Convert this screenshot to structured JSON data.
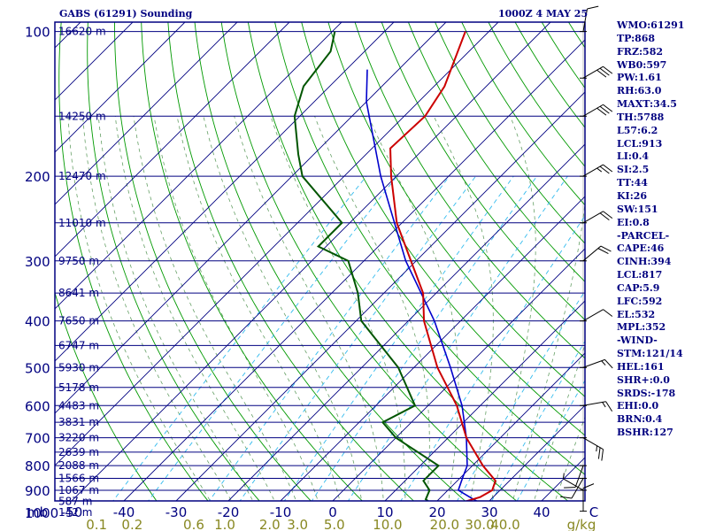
{
  "header": {
    "title": "GABS (61291) Sounding",
    "time": "1000Z  4 MAY 25"
  },
  "indices": [
    "WMO:61291",
    "TP:868",
    "FRZ:582",
    "WB0:597",
    "PW:1.61",
    "RH:63.0",
    "MAXT:34.5",
    "TH:5788",
    "L57:6.2",
    "LCL:913",
    "LI:0.4",
    "SI:2.5",
    "TT:44",
    "KI:26",
    "SW:151",
    "EI:0.8",
    "-PARCEL-",
    "CAPE:46",
    "CINH:394",
    "LCL:817",
    "CAP:5.9",
    "LFC:592",
    "EL:532",
    "MPL:352",
    "-WIND-",
    "STM:121/14",
    "HEL:161",
    "SHR+:0.0",
    "SRDS:-178",
    "EHI:0.0",
    "BRN:0.4",
    "BSHR:127"
  ],
  "colors": {
    "frame": "#000080",
    "isobar": "#000080",
    "isotherm": "#000080",
    "dry_adiabat": "#009900",
    "moist_adiabat": "#66a066",
    "mixing_ratio": "#33bbee",
    "temperature": "#cc0000",
    "dewpoint": "#005500",
    "parcel": "#0000cc",
    "wind_barb": "#000000",
    "tick_label": "#000080",
    "mixing_label": "#888822"
  },
  "chart_data": {
    "type": "skew-t",
    "pressure_axis_unit": "mb",
    "temperature_axis_unit": "C",
    "mixing_ratio_unit": "g/kg",
    "pressure_labels": [
      100,
      200,
      300,
      400,
      500,
      600,
      700,
      800,
      900,
      1000
    ],
    "temperature_labels": [
      -50,
      -40,
      -30,
      -20,
      -10,
      0,
      10,
      20,
      30,
      40
    ],
    "mixing_ratio_labels": [
      "0.1",
      "0.2",
      "0.6",
      "1.0",
      "2.0",
      "3.0",
      "5.0",
      "10.0",
      "20.0",
      "30.0",
      "40.0"
    ],
    "height_labels": [
      {
        "p": 100,
        "label": "16620 m"
      },
      {
        "p": 150,
        "label": "14250 m"
      },
      {
        "p": 200,
        "label": "12470 m"
      },
      {
        "p": 250,
        "label": "11010 m"
      },
      {
        "p": 300,
        "label": "9750 m"
      },
      {
        "p": 350,
        "label": "8641 m"
      },
      {
        "p": 400,
        "label": "7650 m"
      },
      {
        "p": 450,
        "label": "6747 m"
      },
      {
        "p": 500,
        "label": "5930 m"
      },
      {
        "p": 550,
        "label": "5178 m"
      },
      {
        "p": 600,
        "label": "4483 m"
      },
      {
        "p": 650,
        "label": "3831 m"
      },
      {
        "p": 700,
        "label": "3220 m"
      },
      {
        "p": 750,
        "label": "2639 m"
      },
      {
        "p": 800,
        "label": "2088 m"
      },
      {
        "p": 850,
        "label": "1566 m"
      },
      {
        "p": 900,
        "label": "1067 m"
      },
      {
        "p": 950,
        "label": "587 m"
      },
      {
        "p": 1000,
        "label": "142 m"
      }
    ],
    "temperature_profile": [
      {
        "p": 975,
        "t": 25.0
      },
      {
        "p": 960,
        "t": 24.5
      },
      {
        "p": 930,
        "t": 27.5
      },
      {
        "p": 900,
        "t": 28.5
      },
      {
        "p": 860,
        "t": 27.3
      },
      {
        "p": 800,
        "t": 22.0
      },
      {
        "p": 700,
        "t": 13.5
      },
      {
        "p": 600,
        "t": 5.5
      },
      {
        "p": 500,
        "t": -5.5
      },
      {
        "p": 400,
        "t": -17.0
      },
      {
        "p": 350,
        "t": -22.5
      },
      {
        "p": 300,
        "t": -31.0
      },
      {
        "p": 250,
        "t": -41.0
      },
      {
        "p": 200,
        "t": -51.0
      },
      {
        "p": 175,
        "t": -56.5
      },
      {
        "p": 150,
        "t": -56.0
      },
      {
        "p": 130,
        "t": -58.0
      },
      {
        "p": 100,
        "t": -64.5
      }
    ],
    "dewpoint_profile": [
      {
        "p": 975,
        "t": 19.5
      },
      {
        "p": 960,
        "t": 19.5
      },
      {
        "p": 940,
        "t": 17.5
      },
      {
        "p": 900,
        "t": 16.5
      },
      {
        "p": 860,
        "t": 13.5
      },
      {
        "p": 800,
        "t": 13.5
      },
      {
        "p": 700,
        "t": 0.0
      },
      {
        "p": 650,
        "t": -5.5
      },
      {
        "p": 600,
        "t": -2.5
      },
      {
        "p": 500,
        "t": -13.0
      },
      {
        "p": 400,
        "t": -29.0
      },
      {
        "p": 350,
        "t": -35.0
      },
      {
        "p": 300,
        "t": -43.0
      },
      {
        "p": 280,
        "t": -51.5
      },
      {
        "p": 250,
        "t": -51.5
      },
      {
        "p": 200,
        "t": -68.0
      },
      {
        "p": 180,
        "t": -73.0
      },
      {
        "p": 150,
        "t": -81.0
      },
      {
        "p": 130,
        "t": -85.0
      },
      {
        "p": 110,
        "t": -86.5
      },
      {
        "p": 100,
        "t": -89.5
      }
    ],
    "parcel_path": [
      {
        "p": 960,
        "t": 29.0
      },
      {
        "p": 930,
        "t": 25.5
      },
      {
        "p": 900,
        "t": 22.0
      },
      {
        "p": 850,
        "t": 20.5
      },
      {
        "p": 800,
        "t": 19.0
      },
      {
        "p": 700,
        "t": 13.5
      },
      {
        "p": 600,
        "t": 6.5
      },
      {
        "p": 500,
        "t": -3.0
      },
      {
        "p": 400,
        "t": -15.0
      },
      {
        "p": 300,
        "t": -32.0
      },
      {
        "p": 200,
        "t": -53.0
      },
      {
        "p": 140,
        "t": -70.0
      },
      {
        "p": 120,
        "t": -76.0
      }
    ],
    "wind_barbs": [
      {
        "p": 995,
        "dir": 0,
        "kt": 10
      },
      {
        "p": 900,
        "dir": 300,
        "kt": 5
      },
      {
        "p": 850,
        "dir": 210,
        "kt": 10
      },
      {
        "p": 800,
        "dir": 200,
        "kt": 10
      },
      {
        "p": 700,
        "dir": 120,
        "kt": 25
      },
      {
        "p": 600,
        "dir": 80,
        "kt": 15
      },
      {
        "p": 500,
        "dir": 70,
        "kt": 15
      },
      {
        "p": 400,
        "dir": 60,
        "kt": 10
      },
      {
        "p": 300,
        "dir": 50,
        "kt": 20
      },
      {
        "p": 250,
        "dir": 60,
        "kt": 20
      },
      {
        "p": 200,
        "dir": 60,
        "kt": 25
      },
      {
        "p": 150,
        "dir": 60,
        "kt": 30
      },
      {
        "p": 125,
        "dir": 60,
        "kt": 30
      },
      {
        "p": 100,
        "dir": 10,
        "kt": 10
      }
    ]
  }
}
